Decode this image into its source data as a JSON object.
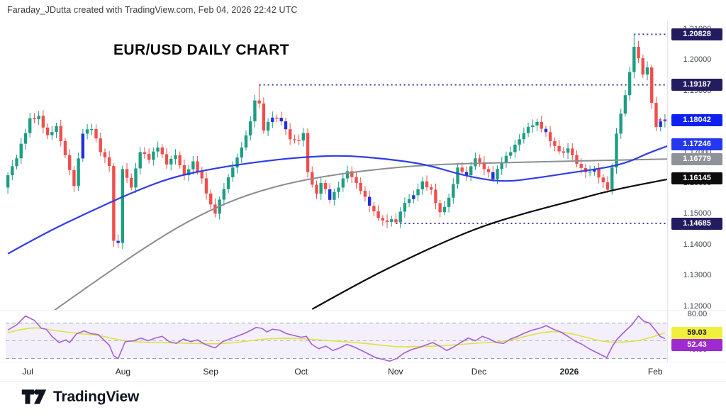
{
  "header": {
    "attribution": "Faraday_JDutta created with TradingView.com, Feb 04, 2026 22:42 UTC"
  },
  "title": "EUR/USD DAILY CHART",
  "footer": {
    "brand": "TradingView"
  },
  "price_axis": {
    "ticks": [
      "1.21000",
      "1.20000",
      "1.19000",
      "1.18000",
      "1.17000",
      "1.16000",
      "1.15000",
      "1.14000",
      "1.13000",
      "1.12000"
    ],
    "badges": [
      {
        "label": "1.20828",
        "price": 1.20828,
        "bg": "#231c60",
        "fg": "#ffffff"
      },
      {
        "label": "1.19187",
        "price": 1.19187,
        "bg": "#231c60",
        "fg": "#ffffff"
      },
      {
        "label": "1.18042",
        "price": 1.18042,
        "bg": "#0d22f2",
        "fg": "#ffffff"
      },
      {
        "label": "1.17246",
        "price": 1.17246,
        "bg": "#2438f0",
        "fg": "#ffffff"
      },
      {
        "label": "1.16779",
        "price": 1.16779,
        "bg": "#909299",
        "fg": "#ffffff"
      },
      {
        "label": "1.16145",
        "price": 1.16145,
        "bg": "#0d0d0d",
        "fg": "#ffffff"
      },
      {
        "label": "1.14685",
        "price": 1.14685,
        "bg": "#231c60",
        "fg": "#ffffff"
      }
    ]
  },
  "rsi_axis": {
    "ticks": [
      {
        "label": "80.00",
        "value": 80
      },
      {
        "label": "40.00",
        "value": 40
      }
    ],
    "badges": [
      {
        "label": "59.03",
        "value": 59.03,
        "bg": "#f0f03c",
        "fg": "#16181c"
      },
      {
        "label": "52.43",
        "value": 52.43,
        "bg": "#9e2ad0",
        "fg": "#ffffff"
      }
    ]
  },
  "time_axis": {
    "labels": [
      {
        "label": "Jul",
        "day": 4.5,
        "bold": false
      },
      {
        "label": "Aug",
        "day": 26.1,
        "bold": false
      },
      {
        "label": "Sep",
        "day": 46,
        "bold": false
      },
      {
        "label": "Oct",
        "day": 66.5,
        "bold": false
      },
      {
        "label": "Nov",
        "day": 87.9,
        "bold": false
      },
      {
        "label": "Dec",
        "day": 106.8,
        "bold": false
      },
      {
        "label": "2026",
        "day": 127.3,
        "bold": true
      },
      {
        "label": "Feb",
        "day": 146.8,
        "bold": false
      }
    ]
  },
  "chart_data": {
    "type": "candlestick",
    "instrument": "EUR/USD",
    "timeframe": "Daily",
    "num_candles": 150,
    "y_range": [
      1.11876,
      1.2125
    ],
    "colors": {
      "up": "#1d9e84",
      "down": "#ef4f4c",
      "blue": "#2231dd"
    },
    "close_anchors": [
      [
        0,
        1.1625
      ],
      [
        2,
        1.168
      ],
      [
        5,
        1.181
      ],
      [
        7,
        1.1818
      ],
      [
        9,
        1.1755
      ],
      [
        11,
        1.1785
      ],
      [
        13,
        1.169
      ],
      [
        15,
        1.159
      ],
      [
        17,
        1.176
      ],
      [
        19,
        1.1775
      ],
      [
        21,
        1.17
      ],
      [
        23,
        1.1655
      ],
      [
        24,
        1.1412
      ],
      [
        25,
        1.1405
      ],
      [
        26,
        1.1645
      ],
      [
        28,
        1.1585
      ],
      [
        30,
        1.17
      ],
      [
        32,
        1.1675
      ],
      [
        34,
        1.1715
      ],
      [
        36,
        1.166
      ],
      [
        38,
        1.169
      ],
      [
        40,
        1.1625
      ],
      [
        42,
        1.167
      ],
      [
        44,
        1.1615
      ],
      [
        46,
        1.153
      ],
      [
        47,
        1.15
      ],
      [
        49,
        1.158
      ],
      [
        51,
        1.165
      ],
      [
        53,
        1.1715
      ],
      [
        55,
        1.18
      ],
      [
        56,
        1.1868
      ],
      [
        57,
        1.1858
      ],
      [
        58,
        1.177
      ],
      [
        60,
        1.1812
      ],
      [
        62,
        1.18
      ],
      [
        64,
        1.1742
      ],
      [
        66,
        1.1738
      ],
      [
        67,
        1.1762
      ],
      [
        68,
        1.1635
      ],
      [
        70,
        1.1565
      ],
      [
        71,
        1.16
      ],
      [
        73,
        1.1545
      ],
      [
        75,
        1.1585
      ],
      [
        77,
        1.1638
      ],
      [
        79,
        1.16
      ],
      [
        81,
        1.1555
      ],
      [
        83,
        1.1508
      ],
      [
        85,
        1.1478
      ],
      [
        87,
        1.1482
      ],
      [
        88,
        1.1472
      ],
      [
        90,
        1.1535
      ],
      [
        92,
        1.156
      ],
      [
        94,
        1.1605
      ],
      [
        96,
        1.1578
      ],
      [
        98,
        1.1505
      ],
      [
        100,
        1.1552
      ],
      [
        102,
        1.165
      ],
      [
        104,
        1.1625
      ],
      [
        106,
        1.168
      ],
      [
        108,
        1.1645
      ],
      [
        110,
        1.1612
      ],
      [
        112,
        1.1665
      ],
      [
        114,
        1.17
      ],
      [
        116,
        1.1742
      ],
      [
        118,
        1.1782
      ],
      [
        120,
        1.1798
      ],
      [
        122,
        1.1765
      ],
      [
        124,
        1.172
      ],
      [
        126,
        1.1698
      ],
      [
        127,
        1.1712
      ],
      [
        129,
        1.1662
      ],
      [
        131,
        1.1635
      ],
      [
        133,
        1.1645
      ],
      [
        135,
        1.1602
      ],
      [
        136,
        1.1578
      ],
      [
        137,
        1.165
      ],
      [
        138,
        1.176
      ],
      [
        139,
        1.1825
      ],
      [
        140,
        1.1885
      ],
      [
        141,
        1.196
      ],
      [
        142,
        1.2042
      ],
      [
        143,
        1.2005
      ],
      [
        144,
        1.1952
      ],
      [
        145,
        1.1975
      ],
      [
        146,
        1.186
      ],
      [
        147,
        1.1782
      ],
      [
        148,
        1.18
      ],
      [
        149,
        1.18042
      ]
    ],
    "wick_overrides": {
      "24": {
        "low": 1.1392
      },
      "57": {
        "high": 1.19187
      },
      "88": {
        "low": 1.14685
      },
      "142": {
        "high": 1.20828
      }
    },
    "blue_candle_indices": [
      17,
      25,
      60,
      62,
      63,
      73,
      82,
      92,
      104,
      110,
      122,
      133,
      148,
      149
    ],
    "moving_averages": [
      {
        "name": "ma-mid-gray",
        "color": "#8a8d93",
        "width": 2,
        "anchors": [
          [
            8,
            1.116
          ],
          [
            10,
            1.1181
          ],
          [
            20,
            1.1282
          ],
          [
            31,
            1.139
          ],
          [
            41,
            1.1478
          ],
          [
            52,
            1.1551
          ],
          [
            63,
            1.1598
          ],
          [
            74,
            1.1627
          ],
          [
            86,
            1.1648
          ],
          [
            97,
            1.166
          ],
          [
            112,
            1.1666
          ],
          [
            128,
            1.1671
          ],
          [
            150.5,
            1.16779
          ]
        ]
      },
      {
        "name": "ma-slow-black",
        "color": "#0a0a0a",
        "width": 2.2,
        "anchors": [
          [
            69,
            1.119
          ],
          [
            79,
            1.127
          ],
          [
            89,
            1.1343
          ],
          [
            99,
            1.1409
          ],
          [
            108,
            1.1462
          ],
          [
            118,
            1.1505
          ],
          [
            128,
            1.1542
          ],
          [
            137,
            1.1577
          ],
          [
            150.5,
            1.16145
          ]
        ]
      },
      {
        "name": "ma-fast-blue",
        "color": "#2e3de8",
        "width": 2.2,
        "anchors": [
          [
            0,
            1.137
          ],
          [
            8,
            1.1434
          ],
          [
            18,
            1.1503
          ],
          [
            28,
            1.1568
          ],
          [
            37,
            1.1618
          ],
          [
            47,
            1.1648
          ],
          [
            57,
            1.1669
          ],
          [
            66,
            1.1683
          ],
          [
            76,
            1.169
          ],
          [
            86,
            1.1678
          ],
          [
            95,
            1.166
          ],
          [
            103,
            1.1625
          ],
          [
            112,
            1.1602
          ],
          [
            120,
            1.1616
          ],
          [
            128,
            1.1634
          ],
          [
            136,
            1.165
          ],
          [
            141,
            1.1669
          ],
          [
            145,
            1.1696
          ],
          [
            150.5,
            1.17246
          ]
        ]
      }
    ],
    "level_lines": [
      {
        "price": 1.20828,
        "from_day": 142,
        "color": "#453c96"
      },
      {
        "price": 1.19187,
        "from_day": 57,
        "color": "#453c96"
      },
      {
        "price": 1.14685,
        "from_day": 88,
        "color": "#453c96"
      }
    ],
    "current_price": {
      "price": 1.18042,
      "dash_color": "#e322ae"
    },
    "rsi": {
      "range": [
        26.4,
        84.8
      ],
      "band": [
        30,
        70
      ],
      "band_fill": "rgba(140,104,211,0.10)",
      "levels": [
        {
          "value": 70,
          "color": "#8fa3ad"
        },
        {
          "value": 50,
          "color": "#b5b8bd"
        },
        {
          "value": 30,
          "color": "#8fa3ad"
        }
      ],
      "line_color": "#a55fd5",
      "ma_color": "#dfe23c",
      "line_anchors": [
        [
          0,
          62
        ],
        [
          2,
          68
        ],
        [
          4,
          78
        ],
        [
          6,
          73
        ],
        [
          7.6,
          64
        ],
        [
          8.7,
          63
        ],
        [
          10,
          55
        ],
        [
          11.6,
          48
        ],
        [
          13.2,
          51
        ],
        [
          14,
          48
        ],
        [
          15.6,
          58
        ],
        [
          17.3,
          61
        ],
        [
          18.9,
          58
        ],
        [
          20.5,
          57
        ],
        [
          23,
          45
        ],
        [
          24,
          33
        ],
        [
          25,
          30
        ],
        [
          26.6,
          49
        ],
        [
          28.5,
          50
        ],
        [
          30.2,
          53
        ],
        [
          31.8,
          50
        ],
        [
          33.4,
          53
        ],
        [
          35,
          55
        ],
        [
          36.6,
          49
        ],
        [
          38.2,
          47
        ],
        [
          39.8,
          52
        ],
        [
          41.5,
          49
        ],
        [
          43,
          51
        ],
        [
          44.7,
          46
        ],
        [
          46.3,
          43
        ],
        [
          47,
          42
        ],
        [
          48.7,
          49
        ],
        [
          50.3,
          52
        ],
        [
          51.9,
          55
        ],
        [
          53.5,
          58
        ],
        [
          55.2,
          62
        ],
        [
          56.3,
          65
        ],
        [
          57.6,
          64
        ],
        [
          58.7,
          60
        ],
        [
          60,
          63
        ],
        [
          61.6,
          62
        ],
        [
          63.2,
          58
        ],
        [
          64.8,
          56
        ],
        [
          66.5,
          54
        ],
        [
          67.7,
          55
        ],
        [
          68.9,
          46
        ],
        [
          70.5,
          41
        ],
        [
          72.1,
          44
        ],
        [
          73.7,
          39
        ],
        [
          75.3,
          42
        ],
        [
          76.9,
          46
        ],
        [
          78.5,
          43
        ],
        [
          80.2,
          39
        ],
        [
          81.8,
          35
        ],
        [
          83.4,
          31
        ],
        [
          85,
          29
        ],
        [
          86.6,
          27
        ],
        [
          88.2,
          30
        ],
        [
          89.8,
          36
        ],
        [
          91.5,
          40
        ],
        [
          93,
          42
        ],
        [
          94.7,
          45
        ],
        [
          96.3,
          48
        ],
        [
          97.9,
          44
        ],
        [
          99.5,
          39
        ],
        [
          101.1,
          43
        ],
        [
          102.7,
          48
        ],
        [
          104.4,
          53
        ],
        [
          106,
          50
        ],
        [
          107.6,
          55
        ],
        [
          109.2,
          52
        ],
        [
          110.8,
          48
        ],
        [
          112.4,
          47
        ],
        [
          114,
          52
        ],
        [
          115.6,
          55
        ],
        [
          117.3,
          59
        ],
        [
          118.9,
          62
        ],
        [
          120.5,
          64
        ],
        [
          122.1,
          67
        ],
        [
          123.7,
          63
        ],
        [
          125.3,
          60
        ],
        [
          127,
          55
        ],
        [
          128.5,
          50
        ],
        [
          130.2,
          46
        ],
        [
          131.8,
          41
        ],
        [
          133.4,
          37
        ],
        [
          135,
          33
        ],
        [
          135.8,
          31
        ],
        [
          137.1,
          44
        ],
        [
          138.2,
          52
        ],
        [
          139.8,
          60
        ],
        [
          141.5,
          68
        ],
        [
          143,
          78
        ],
        [
          144.2,
          72
        ],
        [
          145.5,
          70
        ],
        [
          146.8,
          62
        ],
        [
          147.9,
          55
        ],
        [
          149,
          52.43
        ]
      ],
      "ma_anchors": [
        [
          0,
          59
        ],
        [
          5,
          66
        ],
        [
          10,
          62
        ],
        [
          16,
          58
        ],
        [
          21,
          56
        ],
        [
          24,
          52
        ],
        [
          28,
          49
        ],
        [
          33,
          48
        ],
        [
          39,
          47.5
        ],
        [
          45,
          46.5
        ],
        [
          50,
          47
        ],
        [
          55,
          50
        ],
        [
          58,
          52
        ],
        [
          63,
          53
        ],
        [
          68,
          52
        ],
        [
          73,
          50
        ],
        [
          78,
          48.5
        ],
        [
          83,
          46
        ],
        [
          88,
          43
        ],
        [
          93,
          43.5
        ],
        [
          98,
          44
        ],
        [
          103,
          46
        ],
        [
          108,
          48
        ],
        [
          113,
          49
        ],
        [
          118,
          56
        ],
        [
          123,
          61
        ],
        [
          127,
          59
        ],
        [
          131,
          54
        ],
        [
          135,
          49
        ],
        [
          139,
          48
        ],
        [
          143,
          50
        ],
        [
          146,
          54
        ],
        [
          149,
          59.03
        ]
      ]
    }
  }
}
